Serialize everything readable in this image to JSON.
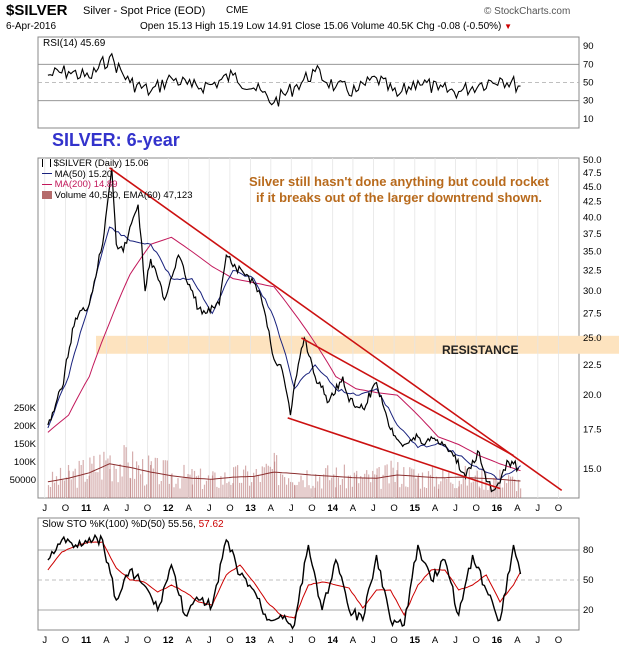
{
  "header": {
    "symbol": "$SILVER",
    "desc": "Silver - Spot Price (EOD)",
    "exchange": "CME",
    "watermark": "© StockCharts.com",
    "date": "6-Apr-2016",
    "quote": "Open 15.13 High 15.19 Low 14.91 Close 15.06 Volume 40.5K Chg -0.08 (-0.50%)",
    "quote_arrow": "▼"
  },
  "rsi_label": "RSI(14) 45.69",
  "big_title": "SILVER: 6-year",
  "annotation": [
    "Silver still hasn't done anything but could rocket",
    "if it breaks out of the larger downtrend shown."
  ],
  "resistance_label": "RESISTANCE",
  "legend": {
    "price": "$SILVER (Daily) 15.06",
    "ma50": "MA(50) 15.20",
    "ma200": "MA(200) 14.89",
    "volume": "Volume 40,530, EMA(60) 47,123"
  },
  "sto_label_prefix": "Slow STO %K(100) %D(50) 55.56,",
  "sto_label_d": "57.62",
  "colors": {
    "price": "#000000",
    "ma50": "#1a237e",
    "ma200": "#c2185b",
    "trendline": "#cc1111",
    "resistance_band": "#fde3bf",
    "volume": "#b56b6b",
    "title": "#3333cc",
    "annotation": "#b86a1c"
  },
  "chart_data": [
    {
      "type": "line",
      "title": "RSI(14) 45.69",
      "y_ticks": [
        "90",
        "70",
        "50",
        "30",
        "10"
      ],
      "ylim": [
        0,
        100
      ],
      "reference_lines": [
        70,
        30
      ],
      "x_ticks": [
        "J",
        "O",
        "11",
        "A",
        "J",
        "O",
        "12",
        "A",
        "J",
        "O",
        "13",
        "A",
        "J",
        "O",
        "14",
        "A",
        "J",
        "O",
        "15",
        "A",
        "J",
        "O",
        "16",
        "A",
        "J",
        "O"
      ],
      "x": [
        "2010-07",
        "2010-10",
        "2011-01",
        "2011-04",
        "2011-07",
        "2011-10",
        "2012-01",
        "2012-04",
        "2012-07",
        "2012-10",
        "2013-01",
        "2013-04",
        "2013-07",
        "2013-10",
        "2014-01",
        "2014-04",
        "2014-07",
        "2014-10",
        "2015-01",
        "2015-04",
        "2015-07",
        "2015-10",
        "2016-01",
        "2016-04"
      ],
      "values": [
        58,
        62,
        55,
        78,
        50,
        40,
        55,
        45,
        48,
        58,
        44,
        28,
        45,
        62,
        45,
        40,
        55,
        35,
        52,
        42,
        40,
        48,
        55,
        46
      ]
    },
    {
      "type": "line",
      "title": "$SILVER (Daily) 15.06",
      "y_ticks": [
        "50.0",
        "47.5",
        "45.0",
        "42.5",
        "40.0",
        "37.5",
        "35.0",
        "32.5",
        "30.0",
        "27.5",
        "25.0",
        "22.5",
        "20.0",
        "17.5",
        "15.0"
      ],
      "ylim": [
        13.5,
        50
      ],
      "scale": "log",
      "x_ticks": [
        "J",
        "O",
        "11",
        "A",
        "J",
        "O",
        "12",
        "A",
        "J",
        "O",
        "13",
        "A",
        "J",
        "O",
        "14",
        "A",
        "J",
        "O",
        "15",
        "A",
        "J",
        "O",
        "16",
        "A",
        "J",
        "O"
      ],
      "series": [
        {
          "name": "$SILVER (Daily) 15.06",
          "x": [
            "2010-07",
            "2010-09",
            "2010-11",
            "2011-01",
            "2011-03",
            "2011-04-25",
            "2011-05",
            "2011-06",
            "2011-08-20",
            "2011-09-20",
            "2011-10",
            "2011-12",
            "2012-02",
            "2012-03",
            "2012-05",
            "2012-06",
            "2012-08",
            "2012-09",
            "2012-10",
            "2012-12",
            "2013-01",
            "2013-02",
            "2013-04-15",
            "2013-05",
            "2013-06-27",
            "2013-08",
            "2013-08-28",
            "2013-10",
            "2013-12",
            "2014-02",
            "2014-03",
            "2014-05",
            "2014-07",
            "2014-09",
            "2014-11",
            "2015-01",
            "2015-02",
            "2015-03",
            "2015-05",
            "2015-06",
            "2015-08",
            "2015-09",
            "2015-10",
            "2015-11",
            "2015-12-15",
            "2016-01",
            "2016-02",
            "2016-03",
            "2016-04-06"
          ],
          "values": [
            17.8,
            20.5,
            27,
            28.5,
            36,
            48.5,
            36,
            35,
            42,
            30,
            34,
            29,
            34.5,
            32,
            28,
            27.5,
            28.5,
            34.5,
            33,
            32,
            31,
            29.5,
            23,
            22.5,
            18.5,
            24,
            25,
            21.5,
            19.5,
            21.5,
            19.5,
            19,
            21,
            17.5,
            16.5,
            17,
            16.5,
            17,
            16.5,
            16,
            14.5,
            15.5,
            16,
            14.3,
            13.8,
            14.2,
            15.5,
            15.3,
            15.06
          ]
        },
        {
          "name": "MA(50) 15.20",
          "x": [
            "2010-07",
            "2010-10",
            "2011-01",
            "2011-04",
            "2011-07",
            "2011-10",
            "2012-01",
            "2012-04",
            "2012-07",
            "2012-10",
            "2013-01",
            "2013-04",
            "2013-07",
            "2013-10",
            "2014-01",
            "2014-04",
            "2014-07",
            "2014-10",
            "2015-01",
            "2015-04",
            "2015-07",
            "2015-10",
            "2016-01",
            "2016-04"
          ],
          "values": [
            17.6,
            21.5,
            28.5,
            38.5,
            36.5,
            36,
            31.5,
            31.5,
            27.5,
            32.5,
            31.5,
            27,
            20.5,
            22.5,
            20.5,
            20,
            20.5,
            17.8,
            16.3,
            16.6,
            15.8,
            15,
            14.4,
            15.2
          ]
        },
        {
          "name": "MA(200) 14.89",
          "x": [
            "2010-07",
            "2010-10",
            "2011-01",
            "2011-04",
            "2011-07",
            "2011-10",
            "2012-01",
            "2012-04",
            "2012-07",
            "2012-10",
            "2013-01",
            "2013-04",
            "2013-07",
            "2013-10",
            "2014-01",
            "2014-04",
            "2014-07",
            "2014-10",
            "2015-01",
            "2015-04",
            "2015-07",
            "2015-10",
            "2016-01",
            "2016-04"
          ],
          "values": [
            17.3,
            18.5,
            21.5,
            26.5,
            32,
            36,
            37,
            35,
            33,
            31.5,
            31,
            30.5,
            27.5,
            24.5,
            21.5,
            20.5,
            20.2,
            20,
            18.5,
            17,
            16.5,
            15.8,
            15.3,
            14.9
          ]
        }
      ],
      "trendlines": [
        {
          "from": [
            "2011-04",
            48.5
          ],
          "to": [
            "2016-10",
            13.8
          ]
        },
        {
          "from": [
            "2013-08",
            25
          ],
          "to": [
            "2016-03",
            15.8
          ]
        },
        {
          "from": [
            "2013-06",
            18.3
          ],
          "to": [
            "2016-01",
            13.9
          ]
        }
      ],
      "resistance_zone": [
        23.5,
        25.2
      ]
    },
    {
      "type": "bar",
      "title": "Volume 40,530, EMA(60) 47,123",
      "y_ticks": [
        "250K",
        "200K",
        "150K",
        "100K",
        "50000"
      ],
      "ylim": [
        0,
        300000
      ],
      "x": [
        "2010-07",
        "2010-10",
        "2011-01",
        "2011-04",
        "2011-07",
        "2011-10",
        "2012-01",
        "2012-04",
        "2012-07",
        "2012-10",
        "2013-01",
        "2013-04",
        "2013-07",
        "2013-10",
        "2014-01",
        "2014-04",
        "2014-07",
        "2014-10",
        "2015-01",
        "2015-04",
        "2015-07",
        "2015-10",
        "2016-01",
        "2016-04"
      ],
      "values": [
        45000,
        60000,
        80000,
        110000,
        90000,
        75000,
        65000,
        55000,
        50000,
        60000,
        60000,
        80000,
        70000,
        65000,
        60000,
        55000,
        55000,
        70000,
        60000,
        55000,
        60000,
        55000,
        55000,
        40530
      ],
      "ema": [
        45000,
        55000,
        70000,
        95000,
        85000,
        72000,
        62000,
        55000,
        52000,
        58000,
        60000,
        72000,
        68000,
        63000,
        60000,
        56000,
        55000,
        64000,
        60000,
        56000,
        58000,
        55000,
        52000,
        47123
      ]
    },
    {
      "type": "line",
      "title": "Slow STO %K(100) %D(50) 55.56, 57.62",
      "y_ticks": [
        "80",
        "50",
        "20"
      ],
      "ylim": [
        0,
        100
      ],
      "reference_lines": [
        80,
        20
      ],
      "x_ticks": [
        "J",
        "O",
        "11",
        "A",
        "J",
        "O",
        "12",
        "A",
        "J",
        "O",
        "13",
        "A",
        "J",
        "O",
        "14",
        "A",
        "J",
        "O",
        "15",
        "A",
        "J",
        "O",
        "16",
        "A",
        "J",
        "O"
      ],
      "series": [
        {
          "name": "%K(100)",
          "x": [
            "2010-07",
            "2010-09",
            "2010-11",
            "2011-01",
            "2011-03",
            "2011-05",
            "2011-07",
            "2011-09",
            "2011-11",
            "2012-01",
            "2012-03",
            "2012-05",
            "2012-07",
            "2012-09",
            "2012-11",
            "2013-01",
            "2013-03",
            "2013-05",
            "2013-07",
            "2013-09",
            "2013-11",
            "2014-01",
            "2014-03",
            "2014-05",
            "2014-07",
            "2014-09",
            "2014-11",
            "2015-01",
            "2015-03",
            "2015-05",
            "2015-07",
            "2015-09",
            "2015-11",
            "2016-01",
            "2016-03",
            "2016-04"
          ],
          "values": [
            70,
            90,
            85,
            92,
            90,
            30,
            60,
            45,
            20,
            65,
            15,
            30,
            25,
            90,
            55,
            40,
            10,
            15,
            5,
            85,
            20,
            70,
            20,
            10,
            75,
            10,
            5,
            85,
            50,
            70,
            15,
            75,
            40,
            10,
            85,
            56
          ]
        },
        {
          "name": "%D(50)",
          "x": [
            "2010-07",
            "2010-09",
            "2010-11",
            "2011-01",
            "2011-03",
            "2011-05",
            "2011-07",
            "2011-09",
            "2011-11",
            "2012-01",
            "2012-03",
            "2012-05",
            "2012-07",
            "2012-09",
            "2012-11",
            "2013-01",
            "2013-03",
            "2013-05",
            "2013-07",
            "2013-09",
            "2013-11",
            "2014-01",
            "2014-03",
            "2014-05",
            "2014-07",
            "2014-09",
            "2014-11",
            "2015-01",
            "2015-03",
            "2015-05",
            "2015-07",
            "2015-09",
            "2015-11",
            "2016-01",
            "2016-03",
            "2016-04"
          ],
          "values": [
            60,
            78,
            84,
            88,
            88,
            62,
            50,
            48,
            38,
            45,
            38,
            28,
            25,
            55,
            65,
            48,
            28,
            15,
            12,
            45,
            48,
            45,
            42,
            22,
            40,
            40,
            15,
            45,
            60,
            60,
            40,
            45,
            55,
            28,
            45,
            58
          ]
        }
      ]
    }
  ]
}
